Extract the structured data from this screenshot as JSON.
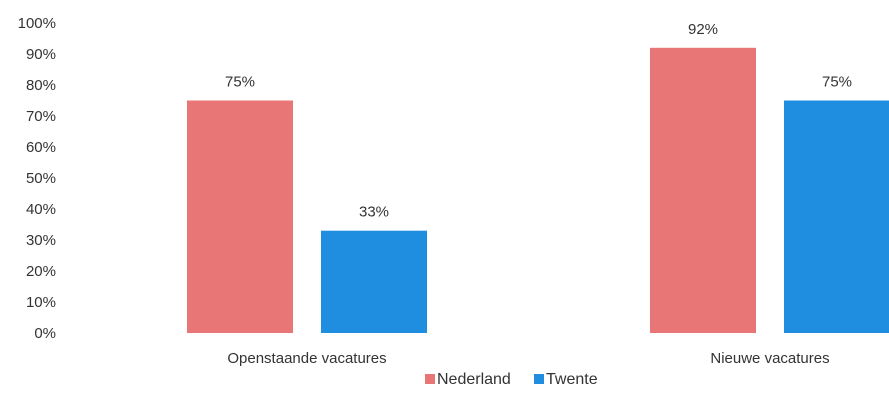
{
  "chart_data": {
    "type": "bar",
    "categories": [
      "Openstaande vacatures",
      "Nieuwe vacatures"
    ],
    "series": [
      {
        "name": "Nederland",
        "values": [
          75,
          92
        ],
        "labels": [
          "75%",
          "92%"
        ],
        "color": "#e87676"
      },
      {
        "name": "Twente",
        "values": [
          33,
          75
        ],
        "labels": [
          "33%",
          "75%"
        ],
        "color": "#1f8ee0"
      }
    ],
    "ylim": [
      0,
      100
    ],
    "yticks": [
      0,
      10,
      20,
      30,
      40,
      50,
      60,
      70,
      80,
      90,
      100
    ],
    "ytick_labels": [
      "0%",
      "10%",
      "20%",
      "30%",
      "40%",
      "50%",
      "60%",
      "70%",
      "80%",
      "90%",
      "100%"
    ],
    "grid": false,
    "legend_position": "bottom",
    "title": "",
    "xlabel": "",
    "ylabel": ""
  }
}
